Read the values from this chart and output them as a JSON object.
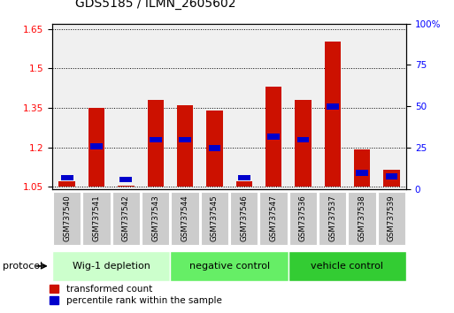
{
  "title": "GDS5185 / ILMN_2605602",
  "samples": [
    "GSM737540",
    "GSM737541",
    "GSM737542",
    "GSM737543",
    "GSM737544",
    "GSM737545",
    "GSM737546",
    "GSM737547",
    "GSM737536",
    "GSM737537",
    "GSM737538",
    "GSM737539"
  ],
  "transformed_counts": [
    1.07,
    1.35,
    1.055,
    1.38,
    1.36,
    1.34,
    1.07,
    1.43,
    1.38,
    1.6,
    1.19,
    1.115
  ],
  "percentile_ranks": [
    7,
    26,
    6,
    30,
    30,
    25,
    7,
    32,
    30,
    50,
    10,
    8
  ],
  "base_value": 1.05,
  "ylim_left": [
    1.04,
    1.67
  ],
  "ylim_right": [
    0,
    100
  ],
  "yticks_left": [
    1.05,
    1.2,
    1.35,
    1.5,
    1.65
  ],
  "yticks_right": [
    0,
    25,
    50,
    75,
    100
  ],
  "groups": [
    {
      "label": "Wig-1 depletion",
      "start": 0,
      "end": 4,
      "color": "#ccffcc"
    },
    {
      "label": "negative control",
      "start": 4,
      "end": 8,
      "color": "#66ee66"
    },
    {
      "label": "vehicle control",
      "start": 8,
      "end": 12,
      "color": "#33cc33"
    }
  ],
  "bar_color": "#cc1100",
  "percentile_color": "#0000cc",
  "background_color": "#ffffff",
  "bar_width": 0.55,
  "protocol_label": "protocol",
  "legend_red_label": "transformed count",
  "legend_blue_label": "percentile rank within the sample"
}
